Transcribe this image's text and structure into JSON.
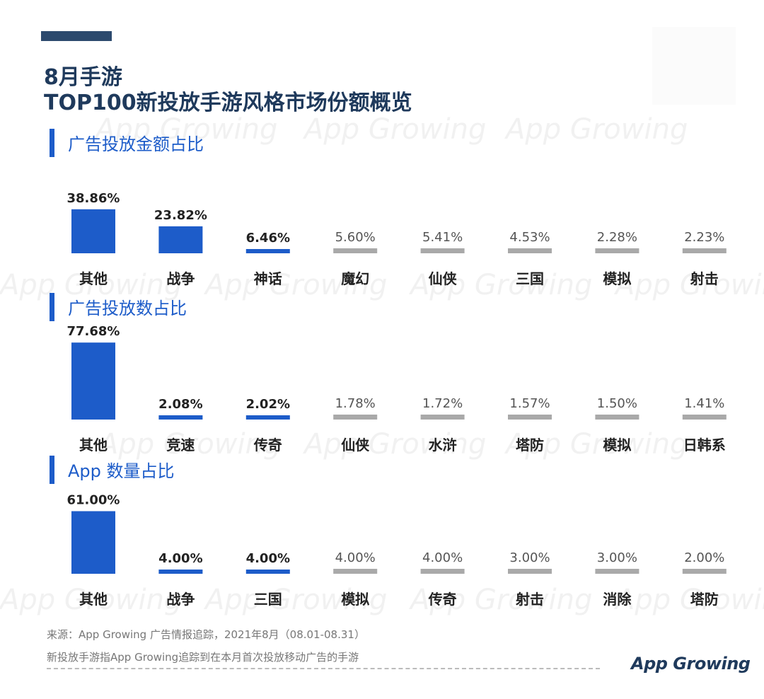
{
  "title": {
    "line1": "8月手游",
    "line2": "TOP100新投放手游风格市场份额概览"
  },
  "watermark": "App Growing",
  "colors": {
    "highlight": "#1d5cc9",
    "muted": "#a9a9a9",
    "title": "#1f3a5c"
  },
  "chart_data": [
    {
      "type": "bar",
      "title": "广告投放金额占比",
      "categories": [
        "其他",
        "战争",
        "神话",
        "魔幻",
        "仙侠",
        "三国",
        "模拟",
        "射击"
      ],
      "values": [
        38.86,
        23.82,
        6.46,
        5.6,
        5.41,
        4.53,
        2.28,
        2.23
      ],
      "labels": [
        "38.86%",
        "23.82%",
        "6.46%",
        "5.60%",
        "5.41%",
        "4.53%",
        "2.28%",
        "2.23%"
      ],
      "highlight_count": 3
    },
    {
      "type": "bar",
      "title": "广告投放数占比",
      "categories": [
        "其他",
        "竞速",
        "传奇",
        "仙侠",
        "水浒",
        "塔防",
        "模拟",
        "日韩系"
      ],
      "values": [
        77.68,
        2.08,
        2.02,
        1.78,
        1.72,
        1.57,
        1.5,
        1.41
      ],
      "labels": [
        "77.68%",
        "2.08%",
        "2.02%",
        "1.78%",
        "1.72%",
        "1.57%",
        "1.50%",
        "1.41%"
      ],
      "highlight_count": 3
    },
    {
      "type": "bar",
      "title": "App 数量占比",
      "categories": [
        "其他",
        "战争",
        "三国",
        "模拟",
        "传奇",
        "射击",
        "消除",
        "塔防"
      ],
      "values": [
        61.0,
        4.0,
        4.0,
        4.0,
        4.0,
        3.0,
        3.0,
        2.0
      ],
      "labels": [
        "61.00%",
        "4.00%",
        "4.00%",
        "4.00%",
        "4.00%",
        "3.00%",
        "3.00%",
        "2.00%"
      ],
      "highlight_count": 3
    }
  ],
  "footer": {
    "source": "来源：App Growing 广告情报追踪，2021年8月（08.01-08.31）",
    "note": "新投放手游指App Growing追踪到在本月首次投放移动广告的手游"
  },
  "logo": "App Growing"
}
